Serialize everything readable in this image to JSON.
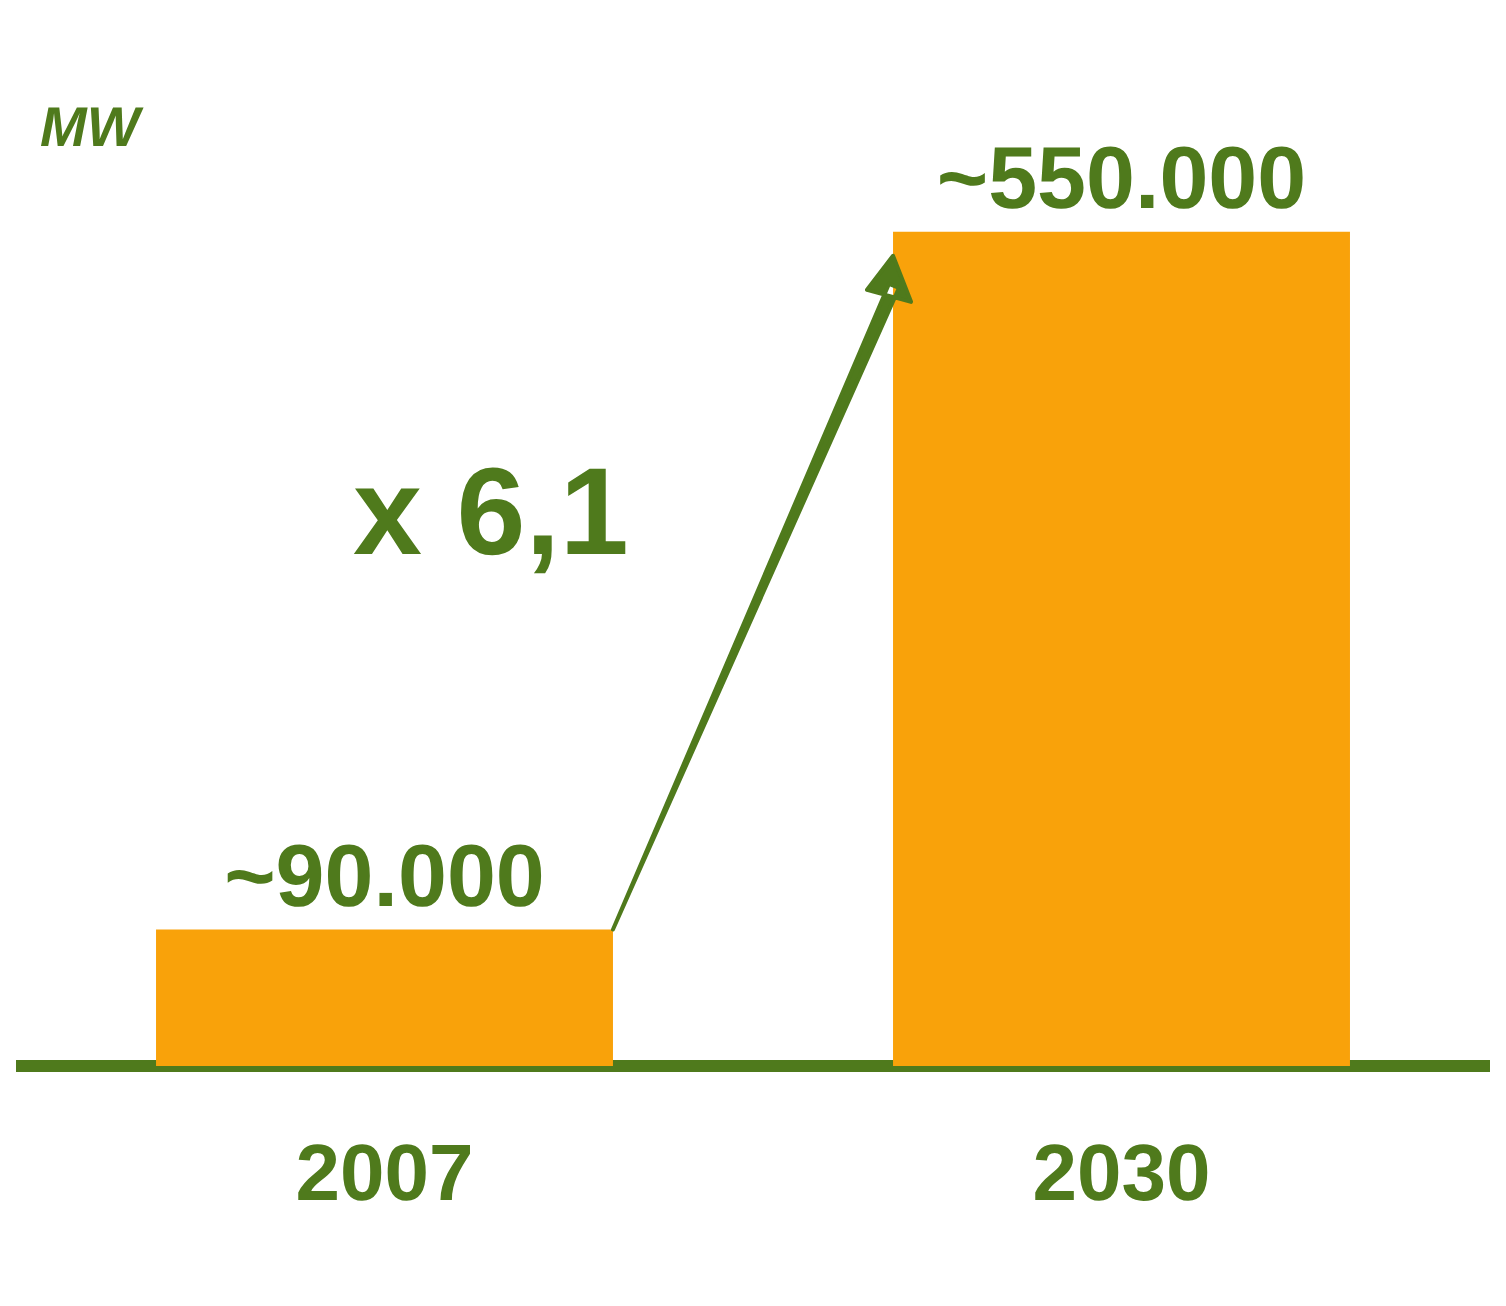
{
  "chart_data": {
    "type": "bar",
    "categories": [
      "2007",
      "2030"
    ],
    "values": [
      90000,
      550000
    ],
    "value_labels": [
      "~90.000",
      "~550.000"
    ],
    "color": "#f9a20a",
    "annotations": [
      "MW",
      "x 6,1"
    ],
    "legend": false,
    "grid": false
  }
}
